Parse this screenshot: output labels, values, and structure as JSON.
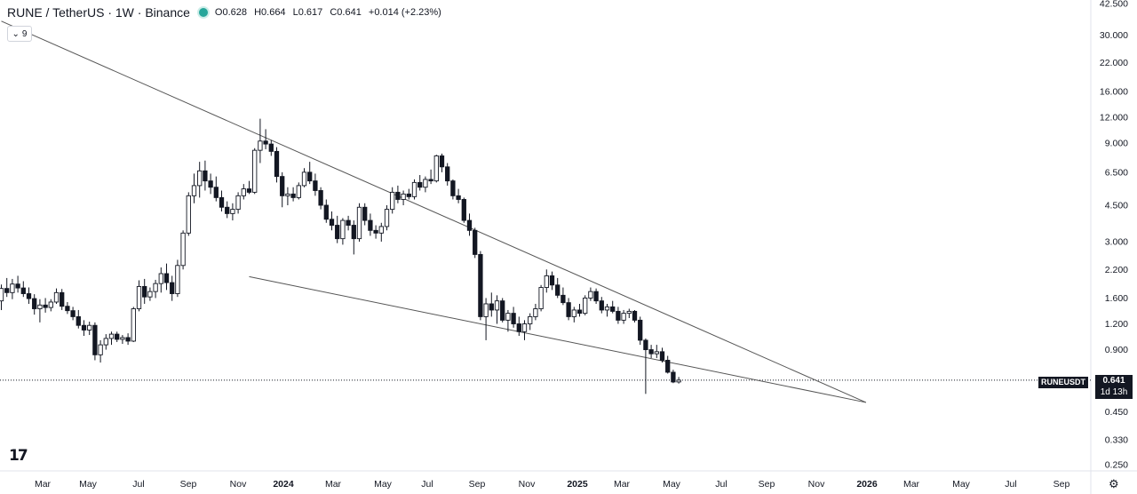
{
  "header": {
    "title": "RUNE / TetherUS · 1W · Binance",
    "open": "O0.628",
    "high": "H0.664",
    "low": "L0.617",
    "close": "C0.641",
    "change": "+0.014 (+2.23%)"
  },
  "indicator_toggle": {
    "count": "9"
  },
  "price_label": {
    "symbol": "RUNEUSDT",
    "value": "0.641",
    "countdown": "1d 13h"
  },
  "colors": {
    "up": "#131722",
    "down": "#131722",
    "status_dot": "#26a69a"
  },
  "chart_data": {
    "type": "candlestick",
    "scale": "log",
    "ylim": [
      0.245,
      43
    ],
    "y_ticks": [
      "42.500",
      "30.000",
      "22.000",
      "16.000",
      "12.000",
      "9.000",
      "6.500",
      "4.500",
      "3.000",
      "2.200",
      "1.600",
      "1.200",
      "0.900",
      "0.641",
      "0.450",
      "0.330",
      "0.250"
    ],
    "x_ticks": [
      "Mar",
      "May",
      "Jul",
      "Sep",
      "Nov",
      "2024",
      "Mar",
      "May",
      "Jul",
      "Sep",
      "Nov",
      "2025",
      "Mar",
      "May",
      "Jul",
      "Sep",
      "Nov",
      "2026",
      "Mar",
      "May",
      "Jul",
      "Sep"
    ],
    "last_price": 0.641,
    "candles": [
      [
        1.55,
        1.86,
        1.4,
        1.78
      ],
      [
        1.78,
        2.0,
        1.62,
        1.7
      ],
      [
        1.7,
        1.98,
        1.58,
        1.87
      ],
      [
        1.87,
        2.05,
        1.7,
        1.79
      ],
      [
        1.79,
        1.93,
        1.62,
        1.68
      ],
      [
        1.68,
        1.8,
        1.5,
        1.59
      ],
      [
        1.59,
        1.67,
        1.33,
        1.42
      ],
      [
        1.42,
        1.58,
        1.22,
        1.48
      ],
      [
        1.48,
        1.6,
        1.36,
        1.44
      ],
      [
        1.44,
        1.58,
        1.38,
        1.53
      ],
      [
        1.53,
        1.78,
        1.5,
        1.7
      ],
      [
        1.7,
        1.77,
        1.4,
        1.46
      ],
      [
        1.46,
        1.53,
        1.34,
        1.39
      ],
      [
        1.39,
        1.45,
        1.25,
        1.3
      ],
      [
        1.3,
        1.4,
        1.14,
        1.18
      ],
      [
        1.18,
        1.25,
        1.05,
        1.12
      ],
      [
        1.12,
        1.23,
        1.06,
        1.18
      ],
      [
        1.18,
        1.22,
        0.8,
        0.85
      ],
      [
        0.85,
        1.0,
        0.78,
        0.95
      ],
      [
        0.95,
        1.07,
        0.9,
        1.02
      ],
      [
        1.02,
        1.1,
        0.95,
        1.07
      ],
      [
        1.07,
        1.1,
        0.98,
        1.01
      ],
      [
        1.01,
        1.06,
        0.96,
        1.03
      ],
      [
        1.03,
        1.08,
        0.95,
        0.99
      ],
      [
        0.99,
        1.45,
        0.98,
        1.42
      ],
      [
        1.42,
        1.95,
        1.38,
        1.82
      ],
      [
        1.82,
        1.98,
        1.5,
        1.62
      ],
      [
        1.62,
        1.8,
        1.55,
        1.72
      ],
      [
        1.72,
        1.96,
        1.6,
        1.88
      ],
      [
        1.88,
        2.25,
        1.7,
        2.1
      ],
      [
        2.1,
        2.35,
        1.75,
        1.9
      ],
      [
        1.9,
        2.05,
        1.55,
        1.68
      ],
      [
        1.68,
        2.45,
        1.62,
        2.3
      ],
      [
        2.3,
        3.4,
        2.2,
        3.3
      ],
      [
        3.3,
        5.2,
        3.2,
        5.0
      ],
      [
        5.0,
        6.4,
        4.6,
        5.6
      ],
      [
        5.6,
        7.3,
        4.9,
        6.6
      ],
      [
        6.6,
        7.4,
        5.3,
        5.9
      ],
      [
        5.9,
        6.4,
        5.1,
        5.5
      ],
      [
        5.5,
        6.2,
        4.7,
        4.9
      ],
      [
        4.9,
        5.3,
        4.2,
        4.4
      ],
      [
        4.4,
        4.7,
        3.9,
        4.1
      ],
      [
        4.1,
        4.6,
        3.8,
        4.3
      ],
      [
        4.3,
        5.2,
        4.1,
        5.0
      ],
      [
        5.0,
        5.7,
        4.8,
        5.4
      ],
      [
        5.4,
        5.9,
        5.1,
        5.2
      ],
      [
        5.2,
        8.5,
        5.1,
        8.3
      ],
      [
        8.3,
        11.8,
        7.2,
        9.2
      ],
      [
        9.2,
        10.5,
        8.4,
        8.9
      ],
      [
        8.9,
        9.3,
        7.8,
        8.2
      ],
      [
        8.2,
        8.6,
        5.8,
        6.2
      ],
      [
        6.2,
        6.5,
        4.4,
        5.0
      ],
      [
        5.0,
        5.5,
        4.5,
        5.1
      ],
      [
        5.1,
        5.5,
        4.7,
        4.9
      ],
      [
        4.9,
        5.8,
        4.8,
        5.6
      ],
      [
        5.6,
        6.8,
        5.5,
        6.5
      ],
      [
        6.5,
        7.3,
        5.7,
        5.9
      ],
      [
        5.9,
        6.4,
        5.0,
        5.3
      ],
      [
        5.3,
        5.5,
        4.3,
        4.5
      ],
      [
        4.5,
        4.8,
        3.7,
        3.85
      ],
      [
        3.85,
        4.2,
        3.4,
        3.6
      ],
      [
        3.6,
        4.0,
        2.95,
        3.1
      ],
      [
        3.1,
        3.9,
        2.9,
        3.8
      ],
      [
        3.8,
        4.0,
        3.4,
        3.6
      ],
      [
        3.6,
        3.8,
        2.6,
        3.1
      ],
      [
        3.1,
        4.6,
        3.0,
        4.4
      ],
      [
        4.4,
        4.6,
        3.6,
        3.8
      ],
      [
        3.8,
        4.1,
        3.2,
        3.4
      ],
      [
        3.4,
        3.6,
        3.1,
        3.3
      ],
      [
        3.3,
        3.7,
        3.0,
        3.55
      ],
      [
        3.55,
        4.5,
        3.4,
        4.3
      ],
      [
        4.3,
        5.5,
        4.1,
        5.2
      ],
      [
        5.2,
        5.6,
        4.6,
        4.8
      ],
      [
        4.8,
        5.3,
        4.5,
        5.1
      ],
      [
        5.1,
        5.4,
        4.8,
        4.95
      ],
      [
        4.95,
        6.0,
        4.8,
        5.8
      ],
      [
        5.8,
        6.3,
        5.3,
        5.5
      ],
      [
        5.5,
        6.2,
        5.2,
        6.0
      ],
      [
        6.0,
        6.7,
        5.7,
        5.9
      ],
      [
        5.9,
        7.9,
        5.8,
        7.8
      ],
      [
        7.8,
        8.0,
        6.5,
        6.9
      ],
      [
        6.9,
        7.2,
        5.6,
        5.9
      ],
      [
        5.9,
        6.0,
        4.8,
        5.0
      ],
      [
        5.0,
        5.4,
        4.6,
        4.8
      ],
      [
        4.8,
        4.9,
        3.7,
        3.8
      ],
      [
        3.8,
        4.1,
        3.2,
        3.4
      ],
      [
        3.4,
        3.5,
        2.5,
        2.6
      ],
      [
        2.6,
        2.7,
        1.25,
        1.3
      ],
      [
        1.3,
        1.6,
        1.0,
        1.5
      ],
      [
        1.5,
        1.7,
        1.3,
        1.4
      ],
      [
        1.4,
        1.65,
        1.2,
        1.55
      ],
      [
        1.55,
        1.6,
        1.22,
        1.25
      ],
      [
        1.25,
        1.4,
        1.1,
        1.35
      ],
      [
        1.35,
        1.45,
        1.15,
        1.2
      ],
      [
        1.2,
        1.3,
        1.05,
        1.1
      ],
      [
        1.1,
        1.25,
        1.0,
        1.2
      ],
      [
        1.2,
        1.35,
        1.12,
        1.3
      ],
      [
        1.3,
        1.5,
        1.25,
        1.42
      ],
      [
        1.42,
        1.85,
        1.38,
        1.8
      ],
      [
        1.8,
        2.2,
        1.7,
        2.05
      ],
      [
        2.05,
        2.15,
        1.75,
        1.85
      ],
      [
        1.85,
        2.0,
        1.6,
        1.65
      ],
      [
        1.65,
        1.8,
        1.48,
        1.52
      ],
      [
        1.52,
        1.6,
        1.25,
        1.3
      ],
      [
        1.3,
        1.45,
        1.22,
        1.4
      ],
      [
        1.4,
        1.5,
        1.3,
        1.35
      ],
      [
        1.35,
        1.65,
        1.32,
        1.6
      ],
      [
        1.6,
        1.8,
        1.55,
        1.72
      ],
      [
        1.72,
        1.78,
        1.5,
        1.55
      ],
      [
        1.55,
        1.62,
        1.35,
        1.4
      ],
      [
        1.4,
        1.5,
        1.3,
        1.45
      ],
      [
        1.45,
        1.55,
        1.35,
        1.38
      ],
      [
        1.38,
        1.45,
        1.2,
        1.25
      ],
      [
        1.25,
        1.4,
        1.2,
        1.35
      ],
      [
        1.35,
        1.42,
        1.28,
        1.38
      ],
      [
        1.38,
        1.4,
        1.22,
        1.25
      ],
      [
        1.25,
        1.3,
        0.95,
        1.0
      ],
      [
        1.0,
        1.02,
        0.55,
        0.9
      ],
      [
        0.9,
        0.95,
        0.82,
        0.86
      ],
      [
        0.86,
        0.95,
        0.82,
        0.88
      ],
      [
        0.88,
        0.92,
        0.78,
        0.8
      ],
      [
        0.8,
        0.84,
        0.69,
        0.7
      ],
      [
        0.7,
        0.72,
        0.62,
        0.628
      ],
      [
        0.628,
        0.664,
        0.617,
        0.641
      ]
    ],
    "trendlines": [
      {
        "name": "upper",
        "from": [
          0,
          35.0
        ],
        "to": [
          157,
          0.5
        ]
      },
      {
        "name": "lower",
        "from": [
          45,
          2.03
        ],
        "to": [
          157,
          0.5
        ]
      }
    ]
  }
}
